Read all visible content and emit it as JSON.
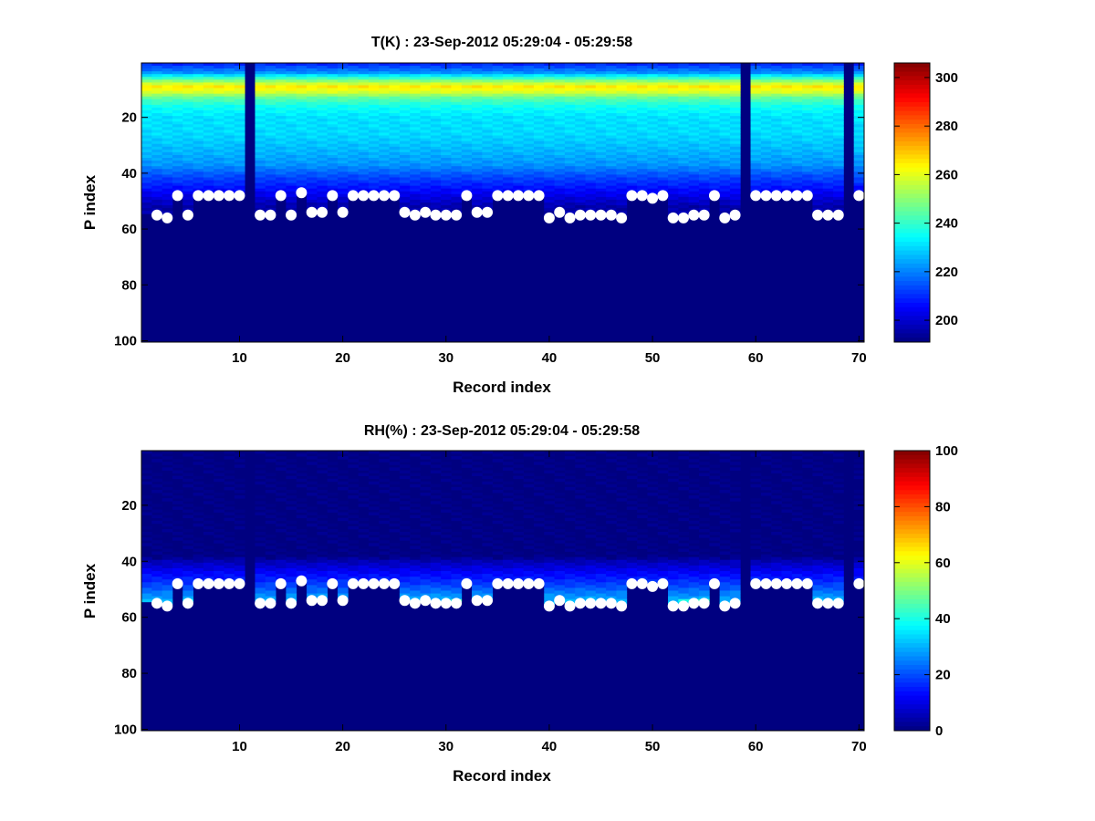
{
  "figure": {
    "background": "#ffffff"
  },
  "chart_data": [
    {
      "type": "heatmap",
      "id": "temperature",
      "title": "T(K) : 23-Sep-2012 05:29:04 - 05:29:58",
      "xlabel": "Record index",
      "ylabel": "P index",
      "xlim": [
        0.5,
        70.5
      ],
      "ylim": [
        100,
        1
      ],
      "y_reversed": true,
      "xticks": [
        10,
        20,
        30,
        40,
        50,
        60,
        70
      ],
      "yticks": [
        20,
        40,
        60,
        80,
        100
      ],
      "clim": [
        191,
        306
      ],
      "colorbar_ticks": [
        200,
        220,
        240,
        260,
        280,
        300
      ],
      "colormap": "jet",
      "grid": false,
      "n_levels": 100,
      "fill_value": 191,
      "missing_columns": [
        11,
        59,
        69
      ],
      "profile": {
        "min": 191,
        "levels_to_warm_peak": [
          [
            1,
            210
          ],
          [
            4,
            222
          ],
          [
            7,
            250
          ],
          [
            9,
            265
          ],
          [
            11,
            258
          ],
          [
            13,
            245
          ],
          [
            16,
            236
          ],
          [
            20,
            231
          ],
          [
            26,
            230
          ],
          [
            32,
            226
          ],
          [
            37,
            222
          ],
          [
            41,
            214
          ],
          [
            46,
            206
          ],
          [
            52,
            196
          ]
        ]
      },
      "surface_markers": {
        "x": [
          2,
          3,
          4,
          5,
          6,
          7,
          8,
          9,
          10,
          12,
          13,
          14,
          15,
          16,
          17,
          18,
          19,
          20,
          21,
          22,
          23,
          24,
          25,
          26,
          27,
          28,
          29,
          30,
          31,
          32,
          33,
          34,
          35,
          36,
          37,
          38,
          39,
          40,
          41,
          42,
          43,
          44,
          45,
          46,
          47,
          48,
          49,
          50,
          51,
          52,
          53,
          54,
          55,
          56,
          57,
          58,
          60,
          61,
          62,
          63,
          64,
          65,
          66,
          67,
          68,
          70
        ],
        "y": [
          55,
          56,
          48,
          55,
          48,
          48,
          48,
          48,
          48,
          55,
          55,
          48,
          55,
          47,
          54,
          54,
          48,
          54,
          48,
          48,
          48,
          48,
          48,
          54,
          55,
          54,
          55,
          55,
          55,
          48,
          54,
          54,
          48,
          48,
          48,
          48,
          48,
          56,
          54,
          56,
          55,
          55,
          55,
          55,
          56,
          48,
          48,
          49,
          48,
          56,
          56,
          55,
          55,
          48,
          56,
          55,
          48,
          48,
          48,
          48,
          48,
          48,
          55,
          55,
          55,
          48
        ],
        "color": "#ffffff"
      }
    },
    {
      "type": "heatmap",
      "id": "humidity",
      "title": "RH(%) : 23-Sep-2012 05:29:04 - 05:29:58",
      "xlabel": "Record index",
      "ylabel": "P index",
      "xlim": [
        0.5,
        70.5
      ],
      "ylim": [
        100,
        1
      ],
      "y_reversed": true,
      "xticks": [
        10,
        20,
        30,
        40,
        50,
        60,
        70
      ],
      "yticks": [
        20,
        40,
        60,
        80,
        100
      ],
      "clim": [
        0,
        100
      ],
      "colorbar_ticks": [
        0,
        20,
        40,
        60,
        80,
        100
      ],
      "colormap": "jet",
      "grid": false,
      "n_levels": 100,
      "fill_value": 0,
      "missing_columns": [
        11,
        59,
        69
      ],
      "profile": {
        "min": 0,
        "levels": [
          [
            1,
            0
          ],
          [
            38,
            0
          ],
          [
            40,
            5
          ],
          [
            44,
            12
          ],
          [
            48,
            18
          ],
          [
            52,
            26
          ],
          [
            56,
            34
          ]
        ]
      },
      "highlight_cells": [
        [
          30,
          55,
          42
        ],
        [
          31,
          54,
          45
        ],
        [
          31,
          55,
          52
        ],
        [
          32,
          55,
          50
        ],
        [
          43,
          55,
          40
        ],
        [
          44,
          55,
          44
        ],
        [
          45,
          55,
          42
        ],
        [
          46,
          55,
          46
        ],
        [
          53,
          54,
          40
        ],
        [
          54,
          54,
          42
        ],
        [
          55,
          54,
          44
        ],
        [
          56,
          54,
          40
        ],
        [
          16,
          53,
          38
        ],
        [
          5,
          54,
          36
        ],
        [
          26,
          54,
          34
        ],
        [
          27,
          55,
          35
        ]
      ],
      "surface_markers": {
        "x": [
          2,
          3,
          4,
          5,
          6,
          7,
          8,
          9,
          10,
          12,
          13,
          14,
          15,
          16,
          17,
          18,
          19,
          20,
          21,
          22,
          23,
          24,
          25,
          26,
          27,
          28,
          29,
          30,
          31,
          32,
          33,
          34,
          35,
          36,
          37,
          38,
          39,
          40,
          41,
          42,
          43,
          44,
          45,
          46,
          47,
          48,
          49,
          50,
          51,
          52,
          53,
          54,
          55,
          56,
          57,
          58,
          60,
          61,
          62,
          63,
          64,
          65,
          66,
          67,
          68,
          70
        ],
        "y": [
          55,
          56,
          48,
          55,
          48,
          48,
          48,
          48,
          48,
          55,
          55,
          48,
          55,
          47,
          54,
          54,
          48,
          54,
          48,
          48,
          48,
          48,
          48,
          54,
          55,
          54,
          55,
          55,
          55,
          48,
          54,
          54,
          48,
          48,
          48,
          48,
          48,
          56,
          54,
          56,
          55,
          55,
          55,
          55,
          56,
          48,
          48,
          49,
          48,
          56,
          56,
          55,
          55,
          48,
          56,
          55,
          48,
          48,
          48,
          48,
          48,
          48,
          55,
          55,
          55,
          48
        ],
        "color": "#ffffff"
      }
    }
  ]
}
